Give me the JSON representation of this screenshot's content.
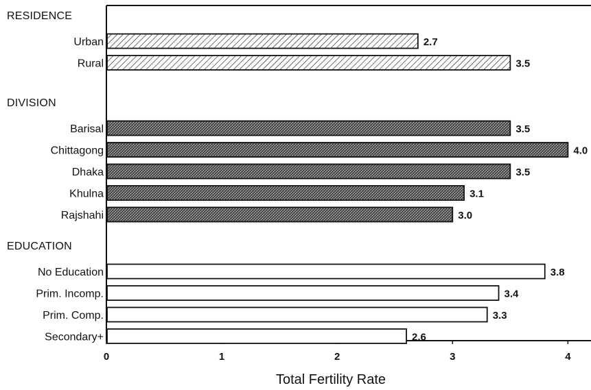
{
  "chart_data": {
    "type": "bar",
    "orientation": "horizontal",
    "xlabel": "Total Fertility Rate",
    "xlim": [
      0,
      4.2
    ],
    "xticks": [
      0,
      1,
      2,
      3,
      4
    ],
    "grid": false,
    "groups": [
      {
        "name": "RESIDENCE",
        "pattern": "diagonal-hatch",
        "categories": [
          "Urban",
          "Rural"
        ],
        "values": [
          2.7,
          3.5
        ],
        "labels": [
          "2.7",
          "3.5"
        ]
      },
      {
        "name": "DIVISION",
        "pattern": "dark-stipple",
        "categories": [
          "Barisal",
          "Chittagong",
          "Dhaka",
          "Khulna",
          "Rajshahi"
        ],
        "values": [
          3.5,
          4.0,
          3.5,
          3.1,
          3.0
        ],
        "labels": [
          "3.5",
          "4.0",
          "3.5",
          "3.1",
          "3.0"
        ]
      },
      {
        "name": "EDUCATION",
        "pattern": "white",
        "categories": [
          "No Education",
          "Prim. Incomp.",
          "Prim. Comp.",
          "Secondary+"
        ],
        "values": [
          3.8,
          3.4,
          3.3,
          2.6
        ],
        "labels": [
          "3.8",
          "3.4",
          "3.3",
          "2.6"
        ]
      }
    ],
    "colors": {
      "bar_stroke": "#111111",
      "hatch": "#111111",
      "stipple_fill": "#5a5a5a",
      "white_fill": "#ffffff"
    }
  }
}
